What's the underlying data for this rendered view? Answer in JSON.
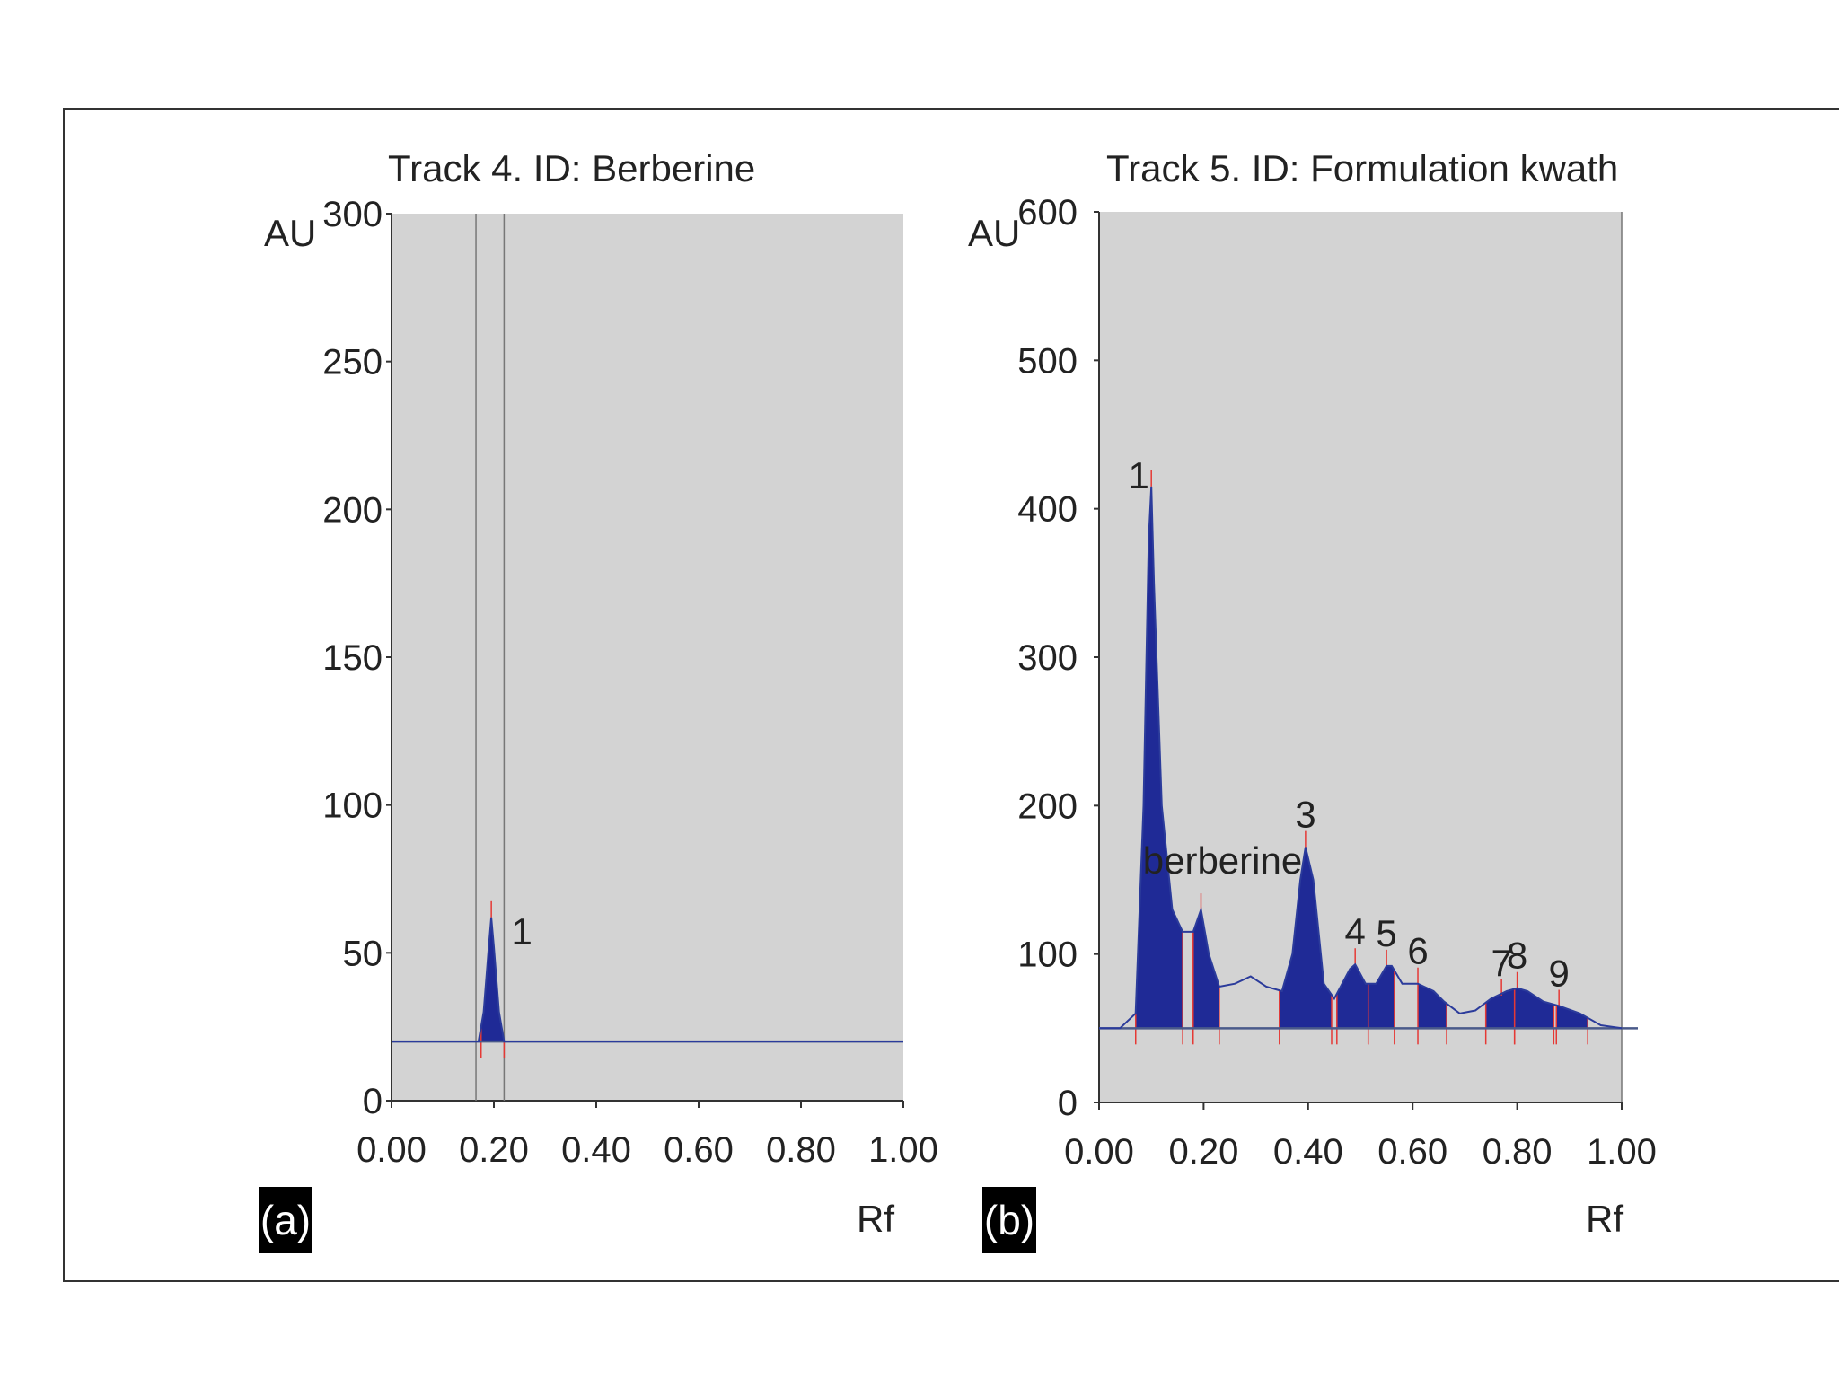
{
  "chart_data": [
    {
      "type": "line",
      "title": "Track 4. ID: Berberine",
      "ylabel": "AU",
      "xlabel": "Rf",
      "panel_label": "(a)",
      "xlim": [
        0.0,
        1.0
      ],
      "ylim": [
        0,
        300
      ],
      "xticks": [
        "0.00",
        "0.20",
        "0.40",
        "0.60",
        "0.80",
        "1.00"
      ],
      "yticks": [
        "0",
        "50",
        "100",
        "150",
        "200",
        "250",
        "300"
      ],
      "grid": false,
      "baseline": 20,
      "markers": [
        0.165,
        0.22
      ],
      "x": [
        0.0,
        0.17,
        0.18,
        0.19,
        0.195,
        0.2,
        0.21,
        0.22,
        1.0
      ],
      "y": [
        20,
        20,
        30,
        52,
        62,
        52,
        30,
        20,
        20
      ],
      "peaks": [
        {
          "label": "1",
          "rf": 0.195,
          "height": 62,
          "start": 0.175,
          "end": 0.22
        }
      ]
    },
    {
      "type": "line",
      "title": "Track 5. ID: Formulation kwath",
      "ylabel": "AU",
      "xlabel": "Rf",
      "panel_label": "(b)",
      "xlim": [
        0.0,
        1.0
      ],
      "ylim": [
        0,
        600
      ],
      "xticks": [
        "0.00",
        "0.20",
        "0.40",
        "0.60",
        "0.80",
        "1.00"
      ],
      "yticks": [
        "0",
        "100",
        "200",
        "300",
        "400",
        "500",
        "600"
      ],
      "grid": false,
      "baseline": 50,
      "markers": [
        1.0
      ],
      "x": [
        0.0,
        0.04,
        0.07,
        0.085,
        0.095,
        0.1,
        0.105,
        0.12,
        0.14,
        0.16,
        0.18,
        0.195,
        0.21,
        0.23,
        0.26,
        0.29,
        0.32,
        0.35,
        0.37,
        0.385,
        0.395,
        0.41,
        0.43,
        0.45,
        0.48,
        0.49,
        0.51,
        0.53,
        0.55,
        0.56,
        0.58,
        0.61,
        0.64,
        0.66,
        0.69,
        0.72,
        0.75,
        0.78,
        0.8,
        0.82,
        0.85,
        0.88,
        0.92,
        0.96,
        1.0
      ],
      "y": [
        50,
        50,
        60,
        200,
        380,
        415,
        350,
        200,
        130,
        115,
        115,
        130,
        100,
        78,
        80,
        85,
        78,
        75,
        100,
        150,
        172,
        150,
        80,
        70,
        90,
        93,
        80,
        80,
        92,
        92,
        80,
        80,
        75,
        68,
        60,
        62,
        70,
        75,
        77,
        75,
        68,
        65,
        60,
        52,
        50
      ],
      "peaks": [
        {
          "label": "1",
          "rf": 0.1,
          "height": 415,
          "start": 0.07,
          "end": 0.16
        },
        {
          "label": "berberine",
          "rf": 0.195,
          "height": 130,
          "start": 0.18,
          "end": 0.23
        },
        {
          "label": "3",
          "rf": 0.395,
          "height": 172,
          "start": 0.345,
          "end": 0.445
        },
        {
          "label": "4",
          "rf": 0.49,
          "height": 93,
          "start": 0.455,
          "end": 0.515
        },
        {
          "label": "5",
          "rf": 0.55,
          "height": 92,
          "start": 0.515,
          "end": 0.565
        },
        {
          "label": "6",
          "rf": 0.61,
          "height": 80,
          "start": 0.61,
          "end": 0.665
        },
        {
          "label": "7",
          "rf": 0.77,
          "height": 72,
          "start": 0.74,
          "end": 0.795
        },
        {
          "label": "8",
          "rf": 0.8,
          "height": 77,
          "start": 0.795,
          "end": 0.87
        },
        {
          "label": "9",
          "rf": 0.88,
          "height": 65,
          "start": 0.875,
          "end": 0.935
        }
      ]
    }
  ]
}
